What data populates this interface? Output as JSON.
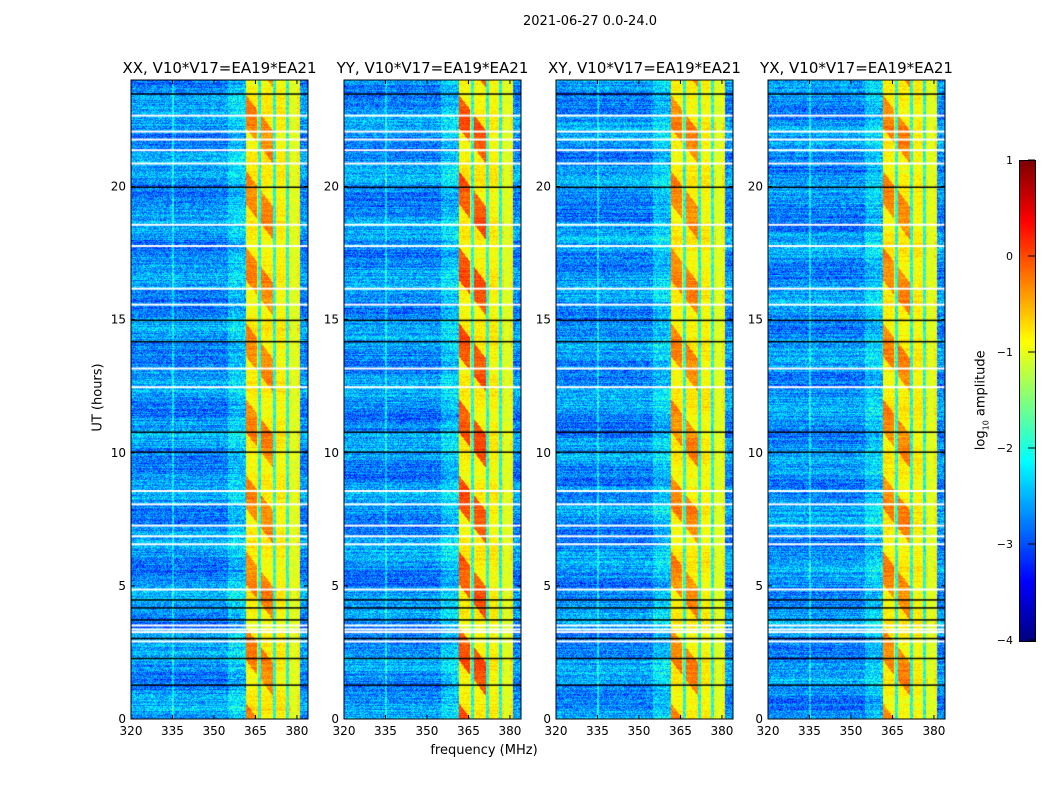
{
  "chart_data": {
    "type": "heatmap",
    "title": "2021-06-27 0.0-24.0",
    "xlabel": "frequency (MHz)",
    "ylabel": "UT (hours)",
    "xlim": [
      320,
      384
    ],
    "ylim": [
      0,
      24
    ],
    "xticks": [
      "320",
      "335",
      "350",
      "365",
      "380"
    ],
    "xtick_values": [
      320,
      335,
      350,
      365,
      380
    ],
    "yticks": [
      "0",
      "5",
      "10",
      "15",
      "20"
    ],
    "ytick_values": [
      0,
      5,
      10,
      15,
      20
    ],
    "panels": [
      {
        "title": "XX, V10*V17=EA19*EA21"
      },
      {
        "title": "YY, V10*V17=EA19*EA21"
      },
      {
        "title": "XY, V10*V17=EA19*EA21"
      },
      {
        "title": "YX, V10*V17=EA19*EA21"
      }
    ],
    "colorbar": {
      "label_main": "log",
      "label_sub": "10",
      "label_rest": " amplitude",
      "range": [
        -4,
        1
      ],
      "ticks": [
        "1",
        "0",
        "−1",
        "−2",
        "−3",
        "−4"
      ],
      "tick_values": [
        1,
        0,
        -1,
        -2,
        -3,
        -4
      ],
      "colormap": "jet"
    },
    "band_MHz": [
      361.5,
      381
    ],
    "flagged_white_hours": [
      2.95,
      3.3,
      3.4,
      3.55,
      4.9,
      6.6,
      6.9,
      7.3,
      8.1,
      8.6,
      12.5,
      13.2,
      15.6,
      16.2,
      17.8,
      18.6,
      20.9,
      21.4,
      21.8,
      22.1,
      22.7
    ],
    "flagged_black_hours": [
      1.3,
      2.3,
      3.05,
      3.75,
      4.2,
      4.5,
      10.05,
      10.8,
      14.2,
      15.0,
      20.0,
      23.5
    ]
  }
}
